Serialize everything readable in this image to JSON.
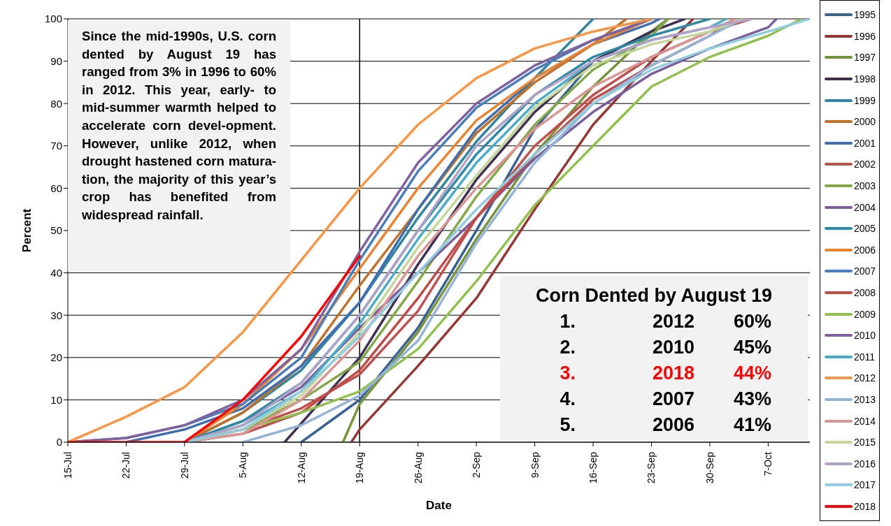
{
  "chart_data": {
    "type": "line",
    "xlabel": "Date",
    "ylabel": "Percent",
    "xlim": [
      "--07-15",
      "--10-12"
    ],
    "xticks": [
      {
        "value": "--07-15",
        "label": "15-Jul"
      },
      {
        "value": "--07-22",
        "label": "22-Jul"
      },
      {
        "value": "--07-29",
        "label": "29-Jul"
      },
      {
        "value": "--08-05",
        "label": "5-Aug"
      },
      {
        "value": "--08-12",
        "label": "12-Aug"
      },
      {
        "value": "--08-19",
        "label": "19-Aug"
      },
      {
        "value": "--08-26",
        "label": "26-Aug"
      },
      {
        "value": "--09-02",
        "label": "2-Sep"
      },
      {
        "value": "--09-09",
        "label": "9-Sep"
      },
      {
        "value": "--09-16",
        "label": "16-Sep"
      },
      {
        "value": "--09-23",
        "label": "23-Sep"
      },
      {
        "value": "--09-30",
        "label": "30-Sep"
      },
      {
        "value": "--10-07",
        "label": "7-Oct"
      }
    ],
    "ylim": [
      0,
      100
    ],
    "yticks": [
      0,
      10,
      20,
      30,
      40,
      50,
      60,
      70,
      80,
      90,
      100
    ],
    "grid": "y",
    "legend": "right",
    "marker": "none",
    "line_style": "solid",
    "ref_lines": [
      {
        "axis": "x",
        "value": "--08-19",
        "color": "#000000"
      }
    ],
    "annotations": [
      "Since the mid-1990s, U.S. corn dented by August 19 has ranged from 3% in 1996 to 60% in 2012. This year, early- to mid-summer warmth helped to accelerate corn devel-opment. However, unlike 2012, when drought hastened corn matura-tion, the majority of this year’s crop has benefited from widespread rainfall.",
      "Corn Dented by August 19",
      "1. 2012 60%",
      "2. 2010 45%",
      "3. 2018 44%",
      "4. 2007 43%",
      "5. 2006 41%"
    ],
    "series": [
      {
        "name": "1995",
        "color": "#3a6193",
        "x": [
          "--08-12",
          "--08-19",
          "--08-26",
          "--09-02",
          "--09-09",
          "--09-16",
          "--09-23",
          "--09-25"
        ],
        "values": [
          0,
          10,
          27,
          50,
          74,
          90,
          97,
          100
        ]
      },
      {
        "name": "1996",
        "color": "#953735",
        "x": [
          "--08-18",
          "--08-19",
          "--08-26",
          "--09-02",
          "--09-09",
          "--09-16",
          "--09-23",
          "--09-28"
        ],
        "values": [
          0,
          3,
          18,
          34,
          55,
          75,
          90,
          100
        ]
      },
      {
        "name": "1997",
        "color": "#77933c",
        "x": [
          "--08-17",
          "--08-19",
          "--08-26",
          "--09-02",
          "--09-09",
          "--09-16",
          "--09-23",
          "--09-25"
        ],
        "values": [
          0,
          9,
          26,
          48,
          68,
          84,
          97,
          100
        ]
      },
      {
        "name": "1998",
        "color": "#403152",
        "x": [
          "--08-10",
          "--08-19",
          "--08-26",
          "--09-02",
          "--09-09",
          "--09-16",
          "--09-23",
          "--09-27"
        ],
        "values": [
          0,
          20,
          42,
          62,
          78,
          90,
          97,
          100
        ]
      },
      {
        "name": "1999",
        "color": "#31859c",
        "x": [
          "--07-29",
          "--08-05",
          "--08-12",
          "--08-19",
          "--08-26",
          "--09-02",
          "--09-09",
          "--09-16"
        ],
        "values": [
          0,
          7,
          17,
          33,
          53,
          71,
          86,
          100
        ]
      },
      {
        "name": "2000",
        "color": "#c0712a",
        "x": [
          "--07-29",
          "--08-05",
          "--08-12",
          "--08-19",
          "--08-26",
          "--09-02",
          "--09-09",
          "--09-16",
          "--09-20"
        ],
        "values": [
          0,
          7,
          18,
          37,
          55,
          73,
          85,
          94,
          100
        ]
      },
      {
        "name": "2001",
        "color": "#3f6fb0",
        "x": [
          "--07-22",
          "--07-29",
          "--08-05",
          "--08-12",
          "--08-19",
          "--08-26",
          "--09-02",
          "--09-09",
          "--09-16",
          "--09-23",
          "--09-24"
        ],
        "values": [
          0,
          3,
          8,
          18,
          33,
          55,
          74,
          86,
          94,
          99,
          100
        ]
      },
      {
        "name": "2002",
        "color": "#c0504d",
        "x": [
          "--07-29",
          "--08-05",
          "--08-12",
          "--08-19",
          "--08-26",
          "--09-02",
          "--09-09",
          "--09-16",
          "--09-23",
          "--09-30",
          "--10-05"
        ],
        "values": [
          0,
          3,
          8,
          16,
          31,
          53,
          70,
          82,
          91,
          97,
          100
        ]
      },
      {
        "name": "2003",
        "color": "#83a84a",
        "x": [
          "--07-29",
          "--08-05",
          "--08-12",
          "--08-19",
          "--08-26",
          "--09-02",
          "--09-09",
          "--09-16",
          "--09-23",
          "--09-25"
        ],
        "values": [
          0,
          3,
          10,
          19,
          38,
          58,
          75,
          88,
          96,
          100
        ]
      },
      {
        "name": "2004",
        "color": "#7a5e9c",
        "x": [
          "--07-29",
          "--08-05",
          "--08-12",
          "--08-19",
          "--08-26",
          "--09-02",
          "--09-09",
          "--09-16",
          "--09-23",
          "--09-30",
          "--10-07",
          "--10-08"
        ],
        "values": [
          0,
          5,
          13,
          27,
          40,
          53,
          67,
          78,
          87,
          93,
          98,
          100
        ]
      },
      {
        "name": "2005",
        "color": "#2e8ba5",
        "x": [
          "--07-29",
          "--08-05",
          "--08-12",
          "--08-19",
          "--08-26",
          "--09-02",
          "--09-09",
          "--09-16",
          "--09-23",
          "--09-30"
        ],
        "values": [
          0,
          5,
          14,
          30,
          50,
          68,
          82,
          91,
          96,
          100
        ]
      },
      {
        "name": "2006",
        "color": "#e98532",
        "x": [
          "--07-29",
          "--08-05",
          "--08-12",
          "--08-19",
          "--08-26",
          "--09-02",
          "--09-09",
          "--09-16",
          "--09-23"
        ],
        "values": [
          0,
          9,
          22,
          41,
          60,
          76,
          86,
          94,
          100
        ]
      },
      {
        "name": "2007",
        "color": "#4a7ebb",
        "x": [
          "--07-15",
          "--07-22",
          "--07-29",
          "--08-05",
          "--08-12",
          "--08-19",
          "--08-26",
          "--09-02",
          "--09-09",
          "--09-16",
          "--09-23"
        ],
        "values": [
          0,
          1,
          4,
          9,
          20,
          43,
          64,
          79,
          88,
          95,
          100
        ]
      },
      {
        "name": "2008",
        "color": "#be4b48",
        "x": [
          "--07-29",
          "--08-05",
          "--08-12",
          "--08-19",
          "--08-26",
          "--09-02",
          "--09-09",
          "--09-16",
          "--09-23",
          "--09-30",
          "--10-03"
        ],
        "values": [
          0,
          2,
          7,
          17,
          34,
          53,
          68,
          81,
          89,
          96,
          100
        ]
      },
      {
        "name": "2009",
        "color": "#92c050",
        "x": [
          "--07-29",
          "--08-05",
          "--08-12",
          "--08-19",
          "--08-26",
          "--09-02",
          "--09-09",
          "--09-16",
          "--09-23",
          "--09-30",
          "--10-07",
          "--10-11"
        ],
        "values": [
          0,
          3,
          7,
          12,
          22,
          38,
          56,
          70,
          84,
          91,
          96,
          100
        ]
      },
      {
        "name": "2010",
        "color": "#7f63a1",
        "x": [
          "--07-15",
          "--07-22",
          "--07-29",
          "--08-05",
          "--08-12",
          "--08-19",
          "--08-26",
          "--09-02",
          "--09-09",
          "--09-16",
          "--09-23"
        ],
        "values": [
          0,
          1,
          4,
          10,
          22,
          45,
          66,
          80,
          89,
          95,
          100
        ]
      },
      {
        "name": "2011",
        "color": "#4bacc6",
        "x": [
          "--07-29",
          "--08-05",
          "--08-12",
          "--08-19",
          "--08-26",
          "--09-02",
          "--09-09",
          "--09-16",
          "--09-23",
          "--09-30",
          "--10-02"
        ],
        "values": [
          0,
          4,
          12,
          28,
          48,
          66,
          80,
          90,
          95,
          98,
          100
        ]
      },
      {
        "name": "2012",
        "color": "#f79646",
        "x": [
          "--07-15",
          "--07-22",
          "--07-29",
          "--08-05",
          "--08-12",
          "--08-19",
          "--08-26",
          "--09-02",
          "--09-09",
          "--09-16",
          "--09-23"
        ],
        "values": [
          0,
          6,
          13,
          26,
          43,
          60,
          75,
          86,
          93,
          97,
          100
        ]
      },
      {
        "name": "2013",
        "color": "#95b3d7",
        "x": [
          "--08-05",
          "--08-12",
          "--08-19",
          "--08-26",
          "--09-02",
          "--09-09",
          "--09-16",
          "--09-23",
          "--09-30",
          "--10-04"
        ],
        "values": [
          0,
          4,
          11,
          24,
          47,
          66,
          80,
          89,
          96,
          100
        ]
      },
      {
        "name": "2014",
        "color": "#d99694",
        "x": [
          "--07-29",
          "--08-05",
          "--08-12",
          "--08-19",
          "--08-26",
          "--09-02",
          "--09-09",
          "--09-16",
          "--09-23",
          "--09-30",
          "--10-03"
        ],
        "values": [
          0,
          2,
          10,
          24,
          44,
          60,
          74,
          84,
          91,
          97,
          100
        ]
      },
      {
        "name": "2015",
        "color": "#c3d69b",
        "x": [
          "--07-29",
          "--08-05",
          "--08-12",
          "--08-19",
          "--08-26",
          "--09-02",
          "--09-09",
          "--09-16",
          "--09-23",
          "--09-30",
          "--10-04"
        ],
        "values": [
          0,
          3,
          11,
          26,
          46,
          63,
          79,
          89,
          94,
          97,
          100
        ]
      },
      {
        "name": "2016",
        "color": "#b3a2c7",
        "x": [
          "--07-29",
          "--08-05",
          "--08-12",
          "--08-19",
          "--08-26",
          "--09-02",
          "--09-09",
          "--09-16",
          "--09-23",
          "--09-30",
          "--10-05"
        ],
        "values": [
          0,
          4,
          14,
          30,
          50,
          70,
          82,
          90,
          95,
          98,
          100
        ]
      },
      {
        "name": "2017",
        "color": "#93cddd",
        "x": [
          "--07-29",
          "--08-05",
          "--08-12",
          "--08-19",
          "--08-26",
          "--09-02",
          "--09-09",
          "--09-16",
          "--09-23",
          "--09-30",
          "--10-07",
          "--10-12"
        ],
        "values": [
          0,
          3,
          12,
          25,
          40,
          55,
          68,
          80,
          88,
          93,
          97,
          100
        ]
      },
      {
        "name": "2018",
        "color": "#ff0000",
        "x": [
          "--07-15",
          "--07-29",
          "--08-05",
          "--08-12",
          "--08-19"
        ],
        "values": [
          0,
          0,
          10,
          25,
          44
        ]
      }
    ]
  }
}
